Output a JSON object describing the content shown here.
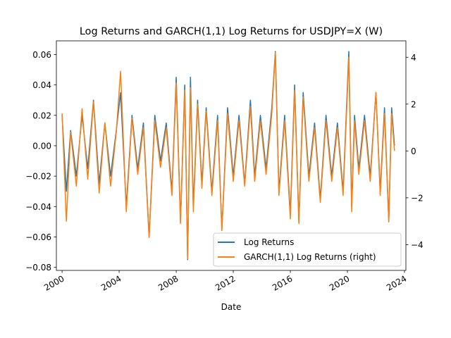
{
  "chart_data": {
    "type": "line",
    "title": "Log Returns and GARCH(1,1) Log Returns for USDJPY=X (W)",
    "xlabel": "Date",
    "ylabel": "",
    "y2label": "",
    "xlim": [
      1999.6,
      2024.1
    ],
    "ylim": [
      -0.082,
      0.069
    ],
    "y2lim": [
      -5.1,
      4.7
    ],
    "x_ticks": [
      2000,
      2004,
      2008,
      2012,
      2016,
      2020,
      2024
    ],
    "y_ticks": [
      -0.08,
      -0.06,
      -0.04,
      -0.02,
      0.0,
      0.02,
      0.04,
      0.06
    ],
    "y_tick_labels": [
      "−0.08",
      "−0.06",
      "−0.04",
      "−0.02",
      "0.00",
      "0.02",
      "0.04",
      "0.06"
    ],
    "y2_ticks": [
      -4,
      -2,
      0,
      2,
      4
    ],
    "y2_tick_labels": [
      "−4",
      "−2",
      "0",
      "2",
      "4"
    ],
    "legend_position": "lower right",
    "series": [
      {
        "name": "Log Returns",
        "axis": "left",
        "color": "#1f77b4",
        "x": [
          2000.0,
          2000.3,
          2000.6,
          2001.0,
          2001.4,
          2001.8,
          2002.2,
          2002.6,
          2003.0,
          2003.4,
          2003.8,
          2004.1,
          2004.5,
          2004.9,
          2005.3,
          2005.7,
          2006.1,
          2006.5,
          2006.9,
          2007.3,
          2007.7,
          2008.0,
          2008.3,
          2008.6,
          2008.8,
          2009.0,
          2009.2,
          2009.5,
          2009.8,
          2010.1,
          2010.5,
          2010.9,
          2011.2,
          2011.6,
          2012.0,
          2012.4,
          2012.8,
          2013.2,
          2013.5,
          2013.9,
          2014.3,
          2014.7,
          2014.95,
          2015.2,
          2015.6,
          2016.0,
          2016.3,
          2016.6,
          2016.9,
          2017.3,
          2017.7,
          2018.1,
          2018.5,
          2018.9,
          2019.3,
          2019.7,
          2020.1,
          2020.3,
          2020.5,
          2020.8,
          2021.2,
          2021.6,
          2022.0,
          2022.3,
          2022.6,
          2022.9,
          2023.1,
          2023.3
        ],
        "values": [
          0.02,
          -0.03,
          0.01,
          -0.02,
          0.02,
          -0.015,
          0.03,
          -0.025,
          0.015,
          -0.02,
          0.01,
          0.035,
          -0.04,
          0.02,
          -0.015,
          0.015,
          -0.06,
          0.02,
          -0.01,
          0.015,
          -0.03,
          0.045,
          -0.05,
          0.04,
          -0.075,
          0.045,
          -0.04,
          0.03,
          -0.025,
          0.025,
          -0.03,
          0.02,
          -0.055,
          0.025,
          -0.02,
          0.02,
          -0.025,
          0.03,
          -0.02,
          0.02,
          -0.015,
          0.025,
          0.062,
          -0.03,
          0.02,
          -0.045,
          0.04,
          -0.05,
          0.035,
          -0.02,
          0.015,
          -0.035,
          0.02,
          -0.02,
          0.015,
          -0.03,
          0.062,
          -0.04,
          0.02,
          -0.015,
          0.02,
          -0.02,
          0.035,
          -0.03,
          0.025,
          -0.05,
          0.025,
          0.0
        ]
      },
      {
        "name": "GARCH(1,1) Log Returns (right)",
        "axis": "right",
        "color": "#ff7f0e",
        "x": [
          2000.0,
          2000.3,
          2000.6,
          2001.0,
          2001.4,
          2001.8,
          2002.2,
          2002.6,
          2003.0,
          2003.4,
          2003.8,
          2004.1,
          2004.5,
          2004.9,
          2005.3,
          2005.7,
          2006.1,
          2006.5,
          2006.9,
          2007.3,
          2007.7,
          2008.0,
          2008.3,
          2008.6,
          2008.8,
          2009.0,
          2009.2,
          2009.5,
          2009.8,
          2010.1,
          2010.5,
          2010.9,
          2011.2,
          2011.6,
          2012.0,
          2012.4,
          2012.8,
          2013.2,
          2013.5,
          2013.9,
          2014.3,
          2014.7,
          2014.95,
          2015.2,
          2015.6,
          2016.0,
          2016.3,
          2016.6,
          2016.9,
          2017.3,
          2017.7,
          2018.1,
          2018.5,
          2018.9,
          2019.3,
          2019.7,
          2020.1,
          2020.3,
          2020.5,
          2020.8,
          2021.2,
          2021.6,
          2022.0,
          2022.3,
          2022.6,
          2022.9,
          2023.1,
          2023.3
        ],
        "values": [
          1.6,
          -3.0,
          0.8,
          -1.5,
          1.8,
          -1.2,
          2.1,
          -1.8,
          1.2,
          -1.5,
          0.8,
          3.4,
          -2.6,
          1.4,
          -1.0,
          1.0,
          -3.7,
          1.3,
          -0.7,
          1.0,
          -1.9,
          2.9,
          -3.1,
          2.6,
          -4.6,
          2.7,
          -2.6,
          2.0,
          -1.6,
          1.7,
          -1.9,
          1.3,
          -3.4,
          1.6,
          -1.3,
          1.3,
          -1.5,
          1.9,
          -1.3,
          1.3,
          -1.0,
          1.6,
          4.2,
          -1.9,
          1.3,
          -2.9,
          2.6,
          -3.1,
          2.3,
          -1.3,
          1.0,
          -2.2,
          1.3,
          -1.3,
          1.0,
          -1.9,
          4.0,
          -2.6,
          1.3,
          -1.0,
          1.3,
          -1.3,
          2.5,
          -1.9,
          1.6,
          -3.0,
          1.6,
          0.0
        ]
      }
    ]
  }
}
